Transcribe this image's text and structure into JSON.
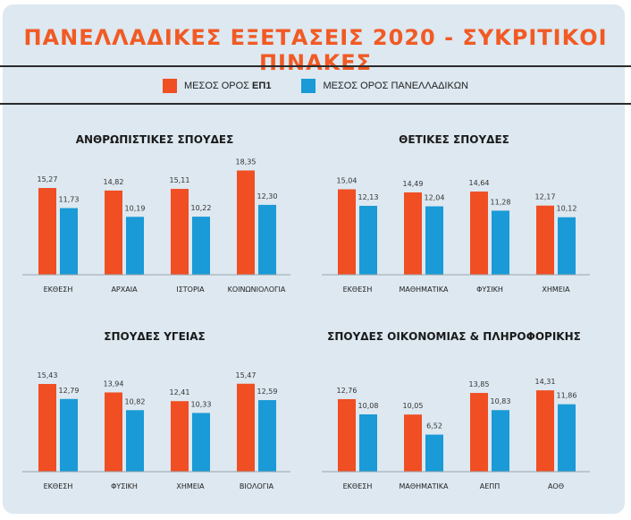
{
  "header": {
    "title": "ΠΑΝΕΛΛΑΔΙΚΕΣ ΕΞΕΤΑΣΕΙΣ 2020 - ΣΥΚΡΙΤΙΚΟΙ ΠΙΝΑΚΕΣ"
  },
  "legend": {
    "items": [
      {
        "label_prefix": "ΜΕΣΟΣ ΟΡΟΣ ",
        "label_bold": "ΕΠ1",
        "color": "#f04e23"
      },
      {
        "label_prefix": "ΜΕΣΟΣ ΟΡΟΣ ΠΑΝΕΛΛΑΔΙΚΩΝ",
        "label_bold": "",
        "color": "#1a9ad6"
      }
    ]
  },
  "colors": {
    "accent": "#f15a24",
    "series_ep1": "#f04e23",
    "series_panhellenic": "#1a9ad6",
    "panel_bg": "#dde8f0"
  },
  "chart_data": [
    {
      "type": "bar",
      "title": "ΑΝΘΡΩΠΙΣΤΙΚΕΣ ΣΠΟΥΔΕΣ",
      "categories": [
        "ΕΚΘΕΣΗ",
        "ΑΡΧΑΙΑ",
        "ΙΣΤΟΡΙΑ",
        "ΚΟΙΝΩΝΙΟΛΟΓΙΑ"
      ],
      "series": [
        {
          "name": "ΜΕΣΟΣ ΟΡΟΣ ΕΠ1",
          "values": [
            15.27,
            14.82,
            15.11,
            18.35
          ],
          "labels": [
            "15,27",
            "14,82",
            "15,11",
            "18,35"
          ]
        },
        {
          "name": "ΜΕΣΟΣ ΟΡΟΣ ΠΑΝΕΛΛΑΔΙΚΩΝ",
          "values": [
            11.73,
            10.19,
            10.22,
            12.3
          ],
          "labels": [
            "11,73",
            "10,19",
            "10,22",
            "12,30"
          ]
        }
      ],
      "grid": false
    },
    {
      "type": "bar",
      "title": "ΘΕΤΙΚΕΣ ΣΠΟΥΔΕΣ",
      "categories": [
        "ΕΚΘΕΣΗ",
        "ΜΑΘΗΜΑΤΙΚΑ",
        "ΦΥΣΙΚΗ",
        "ΧΗΜΕΙΑ"
      ],
      "series": [
        {
          "name": "ΜΕΣΟΣ ΟΡΟΣ ΕΠ1",
          "values": [
            15.04,
            14.49,
            14.64,
            12.17
          ],
          "labels": [
            "15,04",
            "14,49",
            "14,64",
            "12,17"
          ]
        },
        {
          "name": "ΜΕΣΟΣ ΟΡΟΣ ΠΑΝΕΛΛΑΔΙΚΩΝ",
          "values": [
            12.13,
            12.04,
            11.28,
            10.12
          ],
          "labels": [
            "12,13",
            "12,04",
            "11,28",
            "10,12"
          ]
        }
      ],
      "grid": false
    },
    {
      "type": "bar",
      "title": "ΣΠΟΥΔΕΣ ΥΓΕΙΑΣ",
      "categories": [
        "ΕΚΘΕΣΗ",
        "ΦΥΣΙΚΗ",
        "ΧΗΜΕΙΑ",
        "ΒΙΟΛΟΓΙΑ"
      ],
      "series": [
        {
          "name": "ΜΕΣΟΣ ΟΡΟΣ ΕΠ1",
          "values": [
            15.43,
            13.94,
            12.41,
            15.47
          ],
          "labels": [
            "15,43",
            "13,94",
            "12,41",
            "15,47"
          ]
        },
        {
          "name": "ΜΕΣΟΣ ΟΡΟΣ ΠΑΝΕΛΛΑΔΙΚΩΝ",
          "values": [
            12.79,
            10.82,
            10.33,
            12.59
          ],
          "labels": [
            "12,79",
            "10,82",
            "10,33",
            "12,59"
          ]
        }
      ],
      "grid": false
    },
    {
      "type": "bar",
      "title": "ΣΠΟΥΔΕΣ ΟΙΚΟΝΟΜΙΑΣ & ΠΛΗΡΟΦΟΡΙΚΗΣ",
      "categories": [
        "ΕΚΘΕΣΗ",
        "ΜΑΘΗΜΑΤΙΚΑ",
        "ΑΕΠΠ",
        "ΑΟΘ"
      ],
      "series": [
        {
          "name": "ΜΕΣΟΣ ΟΡΟΣ ΕΠ1",
          "values": [
            12.76,
            10.05,
            13.85,
            14.31
          ],
          "labels": [
            "12,76",
            "10,05",
            "13,85",
            "14,31"
          ]
        },
        {
          "name": "ΜΕΣΟΣ ΟΡΟΣ ΠΑΝΕΛΛΑΔΙΚΩΝ",
          "values": [
            10.08,
            6.52,
            10.83,
            11.86
          ],
          "labels": [
            "10,08",
            "6,52",
            "10,83",
            "11,86"
          ]
        }
      ],
      "grid": false
    }
  ]
}
